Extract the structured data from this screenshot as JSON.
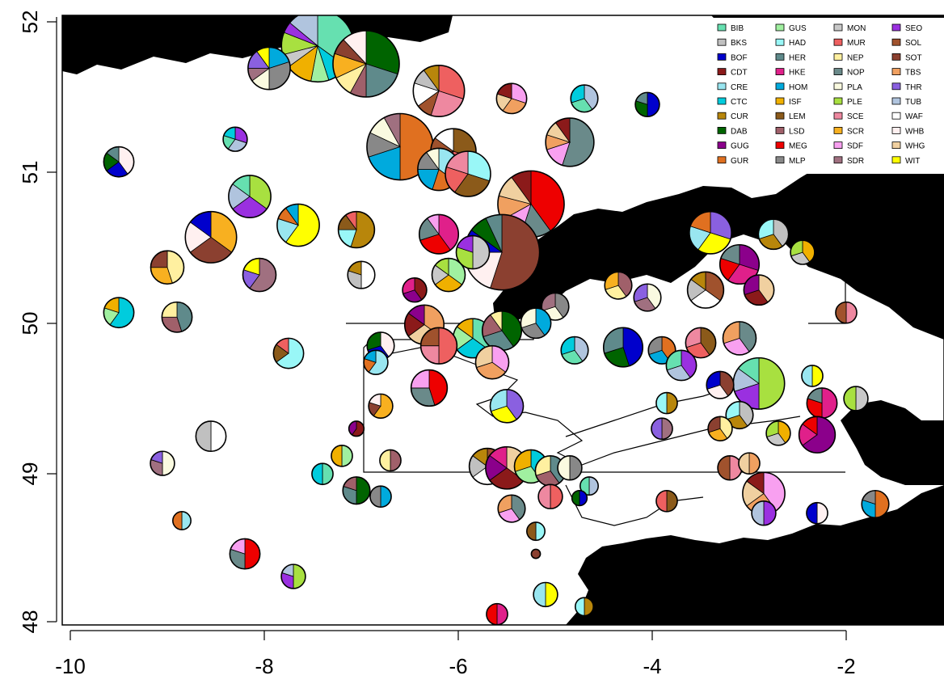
{
  "map": {
    "x_ticks": [
      "-10",
      "-8",
      "-6",
      "-4",
      "-2"
    ],
    "y_ticks": [
      "48",
      "49",
      "50",
      "51",
      "52"
    ],
    "xlim": [
      -10.1,
      -0.9
    ],
    "ylim": [
      47.98,
      52.0
    ],
    "land_color": "#000000",
    "sea_color": "#ffffff"
  },
  "legend": {
    "columns": [
      [
        {
          "code": "BIB",
          "color": "#66e0b0"
        },
        {
          "code": "BKS",
          "color": "#c0c0c0"
        },
        {
          "code": "BOF",
          "color": "#0000cc"
        },
        {
          "code": "CDT",
          "color": "#8b1a1a"
        },
        {
          "code": "CRE",
          "color": "#99e6f0"
        },
        {
          "code": "CTC",
          "color": "#00ccdd"
        },
        {
          "code": "CUR",
          "color": "#b8860b"
        },
        {
          "code": "DAB",
          "color": "#006400"
        },
        {
          "code": "GUG",
          "color": "#8b008b"
        },
        {
          "code": "GUR",
          "color": "#e07020"
        }
      ],
      [
        {
          "code": "GUS",
          "color": "#a0f0a0"
        },
        {
          "code": "HAD",
          "color": "#99f7f7"
        },
        {
          "code": "HER",
          "color": "#5f8a8b"
        },
        {
          "code": "HKE",
          "color": "#e0208a"
        },
        {
          "code": "HOM",
          "color": "#00aadd"
        },
        {
          "code": "ISF",
          "color": "#f0b000"
        },
        {
          "code": "LEM",
          "color": "#8b5a1a"
        },
        {
          "code": "LSD",
          "color": "#a0606a"
        },
        {
          "code": "MEG",
          "color": "#ee0000"
        },
        {
          "code": "MLP",
          "color": "#888888"
        }
      ],
      [
        {
          "code": "MON",
          "color": "#c8c8c8"
        },
        {
          "code": "MUR",
          "color": "#ee6060"
        },
        {
          "code": "NEP",
          "color": "#fff0a0"
        },
        {
          "code": "NOP",
          "color": "#6a8a8a"
        },
        {
          "code": "PLA",
          "color": "#fafae0"
        },
        {
          "code": "PLE",
          "color": "#a8e040"
        },
        {
          "code": "SCE",
          "color": "#ee88a0"
        },
        {
          "code": "SCR",
          "color": "#f8b020"
        },
        {
          "code": "SDF",
          "color": "#f8a0f0"
        },
        {
          "code": "SDR",
          "color": "#a07080"
        }
      ],
      [
        {
          "code": "SEO",
          "color": "#9a30e0"
        },
        {
          "code": "SOL",
          "color": "#a0522d"
        },
        {
          "code": "SOT",
          "color": "#8b4030"
        },
        {
          "code": "TBS",
          "color": "#f0a060"
        },
        {
          "code": "THR",
          "color": "#8a60e0"
        },
        {
          "code": "TUB",
          "color": "#b0c4de"
        },
        {
          "code": "WAF",
          "color": "#ffffff"
        },
        {
          "code": "WHB",
          "color": "#fff0f0"
        },
        {
          "code": "WHG",
          "color": "#f0d0a0"
        },
        {
          "code": "WIT",
          "color": "#ffff00"
        }
      ]
    ]
  },
  "pies": [
    {
      "lon": -7.45,
      "lat": 51.82,
      "r": 0.24,
      "v": [
        0.35,
        0.1,
        0.08,
        0.12,
        0.06,
        0.1,
        0.05,
        0.14
      ]
    },
    {
      "lon": -6.95,
      "lat": 51.7,
      "r": 0.22,
      "v": [
        0.3,
        0.2,
        0.08,
        0.1,
        0.12,
        0.08,
        0.12
      ]
    },
    {
      "lon": -7.95,
      "lat": 51.67,
      "r": 0.14,
      "v": [
        0.2,
        0.3,
        0.15,
        0.1,
        0.15,
        0.1
      ]
    },
    {
      "lon": -6.2,
      "lat": 51.52,
      "r": 0.17,
      "v": [
        0.3,
        0.25,
        0.1,
        0.15,
        0.1,
        0.1
      ]
    },
    {
      "lon": -5.45,
      "lat": 51.47,
      "r": 0.1,
      "v": [
        0.3,
        0.3,
        0.2,
        0.2
      ]
    },
    {
      "lon": -4.7,
      "lat": 51.47,
      "r": 0.09,
      "v": [
        0.4,
        0.3,
        0.3
      ]
    },
    {
      "lon": -4.05,
      "lat": 51.43,
      "r": 0.08,
      "v": [
        0.5,
        0.3,
        0.2
      ]
    },
    {
      "lon": -6.6,
      "lat": 51.15,
      "r": 0.22,
      "v": [
        0.5,
        0.2,
        0.12,
        0.1,
        0.08
      ]
    },
    {
      "lon": -6.05,
      "lat": 51.12,
      "r": 0.15,
      "v": [
        0.3,
        0.25,
        0.15,
        0.15,
        0.15
      ]
    },
    {
      "lon": -4.85,
      "lat": 51.18,
      "r": 0.16,
      "v": [
        0.55,
        0.15,
        0.1,
        0.1,
        0.1
      ]
    },
    {
      "lon": -8.3,
      "lat": 51.2,
      "r": 0.08,
      "v": [
        0.3,
        0.3,
        0.2,
        0.2
      ]
    },
    {
      "lon": -9.5,
      "lat": 51.05,
      "r": 0.1,
      "v": [
        0.4,
        0.25,
        0.2,
        0.15
      ]
    },
    {
      "lon": -6.2,
      "lat": 51.0,
      "r": 0.14,
      "v": [
        0.35,
        0.2,
        0.2,
        0.15,
        0.1
      ]
    },
    {
      "lon": -5.9,
      "lat": 50.97,
      "r": 0.15,
      "v": [
        0.3,
        0.3,
        0.2,
        0.2
      ]
    },
    {
      "lon": -5.25,
      "lat": 50.77,
      "r": 0.22,
      "v": [
        0.4,
        0.15,
        0.12,
        0.12,
        0.11,
        0.1
      ]
    },
    {
      "lon": -8.15,
      "lat": 50.82,
      "r": 0.14,
      "v": [
        0.35,
        0.3,
        0.2,
        0.15
      ]
    },
    {
      "lon": -5.55,
      "lat": 50.45,
      "r": 0.25,
      "v": [
        0.55,
        0.2,
        0.1,
        0.08,
        0.07
      ]
    },
    {
      "lon": -7.65,
      "lat": 50.63,
      "r": 0.14,
      "v": [
        0.6,
        0.2,
        0.1,
        0.1
      ]
    },
    {
      "lon": -7.05,
      "lat": 50.6,
      "r": 0.12,
      "v": [
        0.55,
        0.2,
        0.15,
        0.1
      ]
    },
    {
      "lon": -6.2,
      "lat": 50.57,
      "r": 0.13,
      "v": [
        0.4,
        0.3,
        0.2,
        0.1
      ]
    },
    {
      "lon": -5.85,
      "lat": 50.45,
      "r": 0.11,
      "v": [
        0.5,
        0.3,
        0.2
      ]
    },
    {
      "lon": -8.55,
      "lat": 50.55,
      "r": 0.17,
      "v": [
        0.35,
        0.3,
        0.2,
        0.15
      ]
    },
    {
      "lon": -3.4,
      "lat": 50.58,
      "r": 0.14,
      "v": [
        0.3,
        0.3,
        0.2,
        0.2
      ]
    },
    {
      "lon": -2.75,
      "lat": 50.57,
      "r": 0.1,
      "v": [
        0.4,
        0.3,
        0.3
      ]
    },
    {
      "lon": -3.1,
      "lat": 50.37,
      "r": 0.13,
      "v": [
        0.3,
        0.3,
        0.2,
        0.2
      ]
    },
    {
      "lon": -2.45,
      "lat": 50.45,
      "r": 0.08,
      "v": [
        0.4,
        0.3,
        0.3
      ]
    },
    {
      "lon": -9.0,
      "lat": 50.35,
      "r": 0.11,
      "v": [
        0.45,
        0.3,
        0.25
      ]
    },
    {
      "lon": -8.05,
      "lat": 50.3,
      "r": 0.11,
      "v": [
        0.6,
        0.2,
        0.2
      ]
    },
    {
      "lon": -7.0,
      "lat": 50.3,
      "r": 0.09,
      "v": [
        0.5,
        0.3,
        0.2
      ]
    },
    {
      "lon": -6.45,
      "lat": 50.2,
      "r": 0.08,
      "v": [
        0.4,
        0.3,
        0.3
      ]
    },
    {
      "lon": -6.1,
      "lat": 50.3,
      "r": 0.11,
      "v": [
        0.35,
        0.3,
        0.2,
        0.15
      ]
    },
    {
      "lon": -4.35,
      "lat": 50.23,
      "r": 0.09,
      "v": [
        0.4,
        0.3,
        0.3
      ]
    },
    {
      "lon": -4.05,
      "lat": 50.15,
      "r": 0.09,
      "v": [
        0.4,
        0.3,
        0.3
      ]
    },
    {
      "lon": -3.45,
      "lat": 50.2,
      "r": 0.12,
      "v": [
        0.35,
        0.3,
        0.2,
        0.15
      ]
    },
    {
      "lon": -2.9,
      "lat": 50.2,
      "r": 0.1,
      "v": [
        0.4,
        0.3,
        0.3
      ]
    },
    {
      "lon": -9.5,
      "lat": 50.05,
      "r": 0.1,
      "v": [
        0.6,
        0.2,
        0.2
      ]
    },
    {
      "lon": -8.9,
      "lat": 50.02,
      "r": 0.1,
      "v": [
        0.45,
        0.3,
        0.25
      ]
    },
    {
      "lon": -5.0,
      "lat": 50.09,
      "r": 0.09,
      "v": [
        0.4,
        0.3,
        0.3
      ]
    },
    {
      "lon": -2.0,
      "lat": 50.05,
      "r": 0.07,
      "v": [
        0.5,
        0.5
      ]
    },
    {
      "lon": -6.35,
      "lat": 49.97,
      "r": 0.13,
      "v": [
        0.35,
        0.3,
        0.2,
        0.15
      ]
    },
    {
      "lon": -5.85,
      "lat": 49.88,
      "r": 0.13,
      "v": [
        0.35,
        0.3,
        0.2,
        0.15
      ]
    },
    {
      "lon": -5.55,
      "lat": 49.93,
      "r": 0.13,
      "v": [
        0.4,
        0.3,
        0.2,
        0.1
      ]
    },
    {
      "lon": -5.2,
      "lat": 49.98,
      "r": 0.1,
      "v": [
        0.4,
        0.3,
        0.3
      ]
    },
    {
      "lon": -6.2,
      "lat": 49.83,
      "r": 0.12,
      "v": [
        0.5,
        0.25,
        0.25
      ]
    },
    {
      "lon": -5.65,
      "lat": 49.72,
      "r": 0.11,
      "v": [
        0.35,
        0.35,
        0.3
      ]
    },
    {
      "lon": -4.8,
      "lat": 49.8,
      "r": 0.09,
      "v": [
        0.4,
        0.3,
        0.3
      ]
    },
    {
      "lon": -4.3,
      "lat": 49.82,
      "r": 0.13,
      "v": [
        0.45,
        0.25,
        0.3
      ]
    },
    {
      "lon": -3.9,
      "lat": 49.8,
      "r": 0.09,
      "v": [
        0.4,
        0.3,
        0.3
      ]
    },
    {
      "lon": -3.5,
      "lat": 49.85,
      "r": 0.1,
      "v": [
        0.4,
        0.3,
        0.3
      ]
    },
    {
      "lon": -3.1,
      "lat": 49.88,
      "r": 0.11,
      "v": [
        0.4,
        0.3,
        0.3
      ]
    },
    {
      "lon": -3.7,
      "lat": 49.7,
      "r": 0.1,
      "v": [
        0.4,
        0.3,
        0.3
      ]
    },
    {
      "lon": -6.8,
      "lat": 49.83,
      "r": 0.09,
      "v": [
        0.4,
        0.3,
        0.3
      ]
    },
    {
      "lon": -6.85,
      "lat": 49.72,
      "r": 0.08,
      "v": [
        0.6,
        0.2,
        0.2
      ]
    },
    {
      "lon": -7.75,
      "lat": 49.78,
      "r": 0.1,
      "v": [
        0.65,
        0.2,
        0.15
      ]
    },
    {
      "lon": -6.3,
      "lat": 49.55,
      "r": 0.12,
      "v": [
        0.45,
        0.3,
        0.25
      ]
    },
    {
      "lon": -2.9,
      "lat": 49.58,
      "r": 0.17,
      "v": [
        0.5,
        0.2,
        0.15,
        0.15
      ]
    },
    {
      "lon": -3.3,
      "lat": 49.57,
      "r": 0.09,
      "v": [
        0.4,
        0.3,
        0.3
      ]
    },
    {
      "lon": -2.35,
      "lat": 49.63,
      "r": 0.07,
      "v": [
        0.5,
        0.5
      ]
    },
    {
      "lon": -3.85,
      "lat": 49.45,
      "r": 0.07,
      "v": [
        0.5,
        0.5
      ]
    },
    {
      "lon": -2.25,
      "lat": 49.45,
      "r": 0.1,
      "v": [
        0.5,
        0.3,
        0.2
      ]
    },
    {
      "lon": -1.9,
      "lat": 49.48,
      "r": 0.08,
      "v": [
        0.5,
        0.5
      ]
    },
    {
      "lon": -6.8,
      "lat": 49.43,
      "r": 0.08,
      "v": [
        0.6,
        0.2,
        0.2
      ]
    },
    {
      "lon": -5.5,
      "lat": 49.43,
      "r": 0.11,
      "v": [
        0.4,
        0.3,
        0.3
      ]
    },
    {
      "lon": -3.1,
      "lat": 49.37,
      "r": 0.09,
      "v": [
        0.4,
        0.3,
        0.3
      ]
    },
    {
      "lon": -2.3,
      "lat": 49.24,
      "r": 0.12,
      "v": [
        0.65,
        0.2,
        0.15
      ]
    },
    {
      "lon": -2.7,
      "lat": 49.25,
      "r": 0.08,
      "v": [
        0.4,
        0.3,
        0.3
      ]
    },
    {
      "lon": -3.3,
      "lat": 49.28,
      "r": 0.08,
      "v": [
        0.4,
        0.3,
        0.3
      ]
    },
    {
      "lon": -3.9,
      "lat": 49.28,
      "r": 0.07,
      "v": [
        0.5,
        0.5
      ]
    },
    {
      "lon": -8.55,
      "lat": 49.23,
      "r": 0.1,
      "v": [
        0.5,
        0.5
      ]
    },
    {
      "lon": -7.05,
      "lat": 49.28,
      "r": 0.05,
      "v": [
        0.6,
        0.4
      ]
    },
    {
      "lon": -7.2,
      "lat": 49.1,
      "r": 0.07,
      "v": [
        0.5,
        0.5
      ]
    },
    {
      "lon": -6.7,
      "lat": 49.07,
      "r": 0.07,
      "v": [
        0.5,
        0.5
      ]
    },
    {
      "lon": -9.05,
      "lat": 49.05,
      "r": 0.08,
      "v": [
        0.5,
        0.3,
        0.2
      ]
    },
    {
      "lon": -5.7,
      "lat": 49.03,
      "r": 0.12,
      "v": [
        0.35,
        0.3,
        0.2,
        0.15
      ]
    },
    {
      "lon": -5.5,
      "lat": 49.02,
      "r": 0.14,
      "v": [
        0.35,
        0.3,
        0.2,
        0.15
      ]
    },
    {
      "lon": -5.25,
      "lat": 49.03,
      "r": 0.11,
      "v": [
        0.4,
        0.3,
        0.3
      ]
    },
    {
      "lon": -5.05,
      "lat": 49.0,
      "r": 0.1,
      "v": [
        0.4,
        0.3,
        0.3
      ]
    },
    {
      "lon": -4.85,
      "lat": 49.02,
      "r": 0.08,
      "v": [
        0.5,
        0.5
      ]
    },
    {
      "lon": -3.2,
      "lat": 49.02,
      "r": 0.08,
      "v": [
        0.5,
        0.5
      ]
    },
    {
      "lon": -3.0,
      "lat": 49.05,
      "r": 0.07,
      "v": [
        0.5,
        0.5
      ]
    },
    {
      "lon": -7.4,
      "lat": 48.98,
      "r": 0.07,
      "v": [
        0.5,
        0.5
      ]
    },
    {
      "lon": -7.05,
      "lat": 48.87,
      "r": 0.09,
      "v": [
        0.5,
        0.3,
        0.2
      ]
    },
    {
      "lon": -6.8,
      "lat": 48.83,
      "r": 0.07,
      "v": [
        0.5,
        0.5
      ]
    },
    {
      "lon": -5.05,
      "lat": 48.83,
      "r": 0.08,
      "v": [
        0.5,
        0.5
      ]
    },
    {
      "lon": -2.85,
      "lat": 48.85,
      "r": 0.14,
      "v": [
        0.4,
        0.25,
        0.2,
        0.15
      ]
    },
    {
      "lon": -4.65,
      "lat": 48.9,
      "r": 0.06,
      "v": [
        0.5,
        0.5
      ]
    },
    {
      "lon": -4.75,
      "lat": 48.82,
      "r": 0.05,
      "v": [
        0.5,
        0.5
      ]
    },
    {
      "lon": -1.7,
      "lat": 48.78,
      "r": 0.09,
      "v": [
        0.5,
        0.3,
        0.2
      ]
    },
    {
      "lon": -3.85,
      "lat": 48.8,
      "r": 0.07,
      "v": [
        0.5,
        0.5
      ]
    },
    {
      "lon": -5.45,
      "lat": 48.75,
      "r": 0.09,
      "v": [
        0.4,
        0.3,
        0.3
      ]
    },
    {
      "lon": -2.85,
      "lat": 48.72,
      "r": 0.08,
      "v": [
        0.5,
        0.5
      ]
    },
    {
      "lon": -2.3,
      "lat": 48.72,
      "r": 0.07,
      "v": [
        0.5,
        0.5
      ]
    },
    {
      "lon": -8.85,
      "lat": 48.67,
      "r": 0.06,
      "v": [
        0.5,
        0.5
      ]
    },
    {
      "lon": -5.2,
      "lat": 48.6,
      "r": 0.06,
      "v": [
        0.5,
        0.5
      ]
    },
    {
      "lon": -8.2,
      "lat": 48.45,
      "r": 0.1,
      "v": [
        0.5,
        0.3,
        0.2
      ]
    },
    {
      "lon": -7.7,
      "lat": 48.3,
      "r": 0.08,
      "v": [
        0.5,
        0.3,
        0.2
      ]
    },
    {
      "lon": -5.2,
      "lat": 48.45,
      "r": 0.03,
      "v": [
        1.0
      ]
    },
    {
      "lon": -5.1,
      "lat": 48.18,
      "r": 0.08,
      "v": [
        0.5,
        0.5
      ]
    },
    {
      "lon": -4.7,
      "lat": 48.1,
      "r": 0.06,
      "v": [
        0.5,
        0.5
      ]
    },
    {
      "lon": -5.6,
      "lat": 48.05,
      "r": 0.07,
      "v": [
        0.5,
        0.5
      ]
    }
  ]
}
